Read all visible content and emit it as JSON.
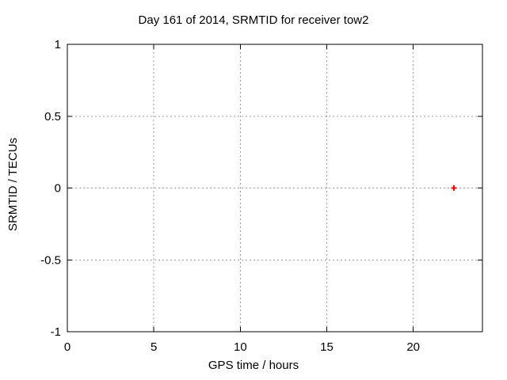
{
  "chart_data": {
    "type": "scatter",
    "title": "Day 161 of 2014, SRMTID for receiver tow2",
    "xlabel": "GPS time / hours",
    "ylabel": "SRMTID / TECUs",
    "xlim": [
      0,
      24
    ],
    "ylim": [
      -1,
      1
    ],
    "xticks": [
      0,
      5,
      10,
      15,
      20
    ],
    "xtick_labels": [
      "0",
      "5",
      "10",
      "15",
      "20"
    ],
    "yticks": [
      -1,
      -0.5,
      0,
      0.5,
      1
    ],
    "ytick_labels": [
      "-1",
      "-0.5",
      "0",
      "0.5",
      "1"
    ],
    "grid": true,
    "grid_style": "dotted",
    "legend": "none",
    "series": [
      {
        "name": "SRMTID",
        "marker": "plus",
        "color": "#ff0000",
        "points": [
          {
            "x": 22.35,
            "y": 0
          }
        ]
      }
    ]
  },
  "colors": {
    "background": "#ffffff",
    "axis": "#000000",
    "grid": "#999999",
    "text": "#000000",
    "marker": "#ff0000"
  }
}
